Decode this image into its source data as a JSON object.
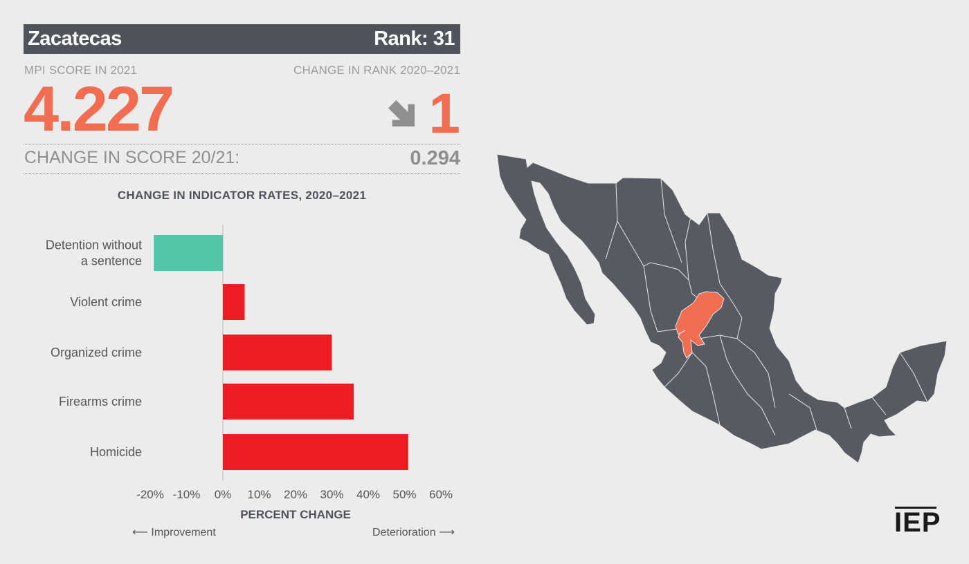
{
  "header": {
    "state": "Zacatecas",
    "rank_label": "Rank: 31"
  },
  "mpi": {
    "score_label": "MPI SCORE IN 2021",
    "score": "4.227"
  },
  "rank_change": {
    "label": "CHANGE IN RANK 2020–2021",
    "value": "1",
    "direction": "down-right-arrow-icon"
  },
  "score_change": {
    "label": "CHANGE IN SCORE 20/21:",
    "value": "0.294"
  },
  "colors": {
    "accent": "#f26d4f",
    "bar_positive": "#ee1c25",
    "bar_negative": "#52c4a8",
    "header_bg": "#4f535c",
    "map_fill": "#555a63",
    "map_highlight": "#f26d4f"
  },
  "chart_data": {
    "type": "bar",
    "orientation": "horizontal",
    "title": "CHANGE IN INDICATOR RATES, 2020–2021",
    "xlabel": "PERCENT CHANGE",
    "categories": [
      "Detention without a sentence",
      "Violent crime",
      "Organized crime",
      "Firearms crime",
      "Homicide"
    ],
    "category_lines": [
      [
        "Detention without",
        "a sentence"
      ],
      [
        "Violent crime"
      ],
      [
        "Organized crime"
      ],
      [
        "Firearms crime"
      ],
      [
        "Homicide"
      ]
    ],
    "values": [
      -19,
      6,
      30,
      36,
      51
    ],
    "xlim": [
      -20,
      60
    ],
    "ticks": [
      "-20%",
      "-10%",
      "0%",
      "10%",
      "20%",
      "30%",
      "40%",
      "50%",
      "60%"
    ],
    "tick_values": [
      -20,
      -10,
      0,
      10,
      20,
      30,
      40,
      50,
      60
    ],
    "grid": false
  },
  "footer": {
    "left": "Improvement",
    "right": "Deterioration"
  },
  "logo": "IEP"
}
